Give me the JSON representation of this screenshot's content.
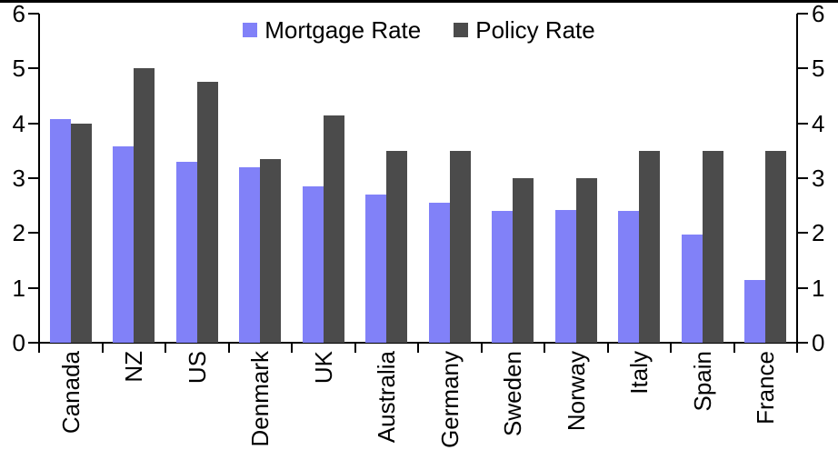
{
  "chart_data": {
    "type": "bar",
    "title": "",
    "categories": [
      "Canada",
      "NZ",
      "US",
      "Denmark",
      "UK",
      "Australia",
      "Germany",
      "Sweden",
      "Norway",
      "Italy",
      "Spain",
      "France"
    ],
    "series": [
      {
        "name": "Mortgage Rate",
        "color": "#8181F8",
        "values": [
          4.07,
          3.58,
          3.3,
          3.2,
          2.85,
          2.7,
          2.55,
          2.4,
          2.42,
          2.4,
          1.97,
          1.15
        ]
      },
      {
        "name": "Policy Rate",
        "color": "#4B4B4B",
        "values": [
          4.0,
          5.0,
          4.75,
          3.35,
          4.15,
          3.5,
          3.5,
          3.0,
          3.0,
          3.5,
          3.5,
          3.5
        ]
      }
    ],
    "ylim": [
      0,
      6
    ],
    "yticks": [
      0,
      1,
      2,
      3,
      4,
      5,
      6
    ],
    "dual_axis": true,
    "legend_position": "top-center",
    "grid": false,
    "axis_color": "#000000",
    "background": "#FFFFFF"
  }
}
